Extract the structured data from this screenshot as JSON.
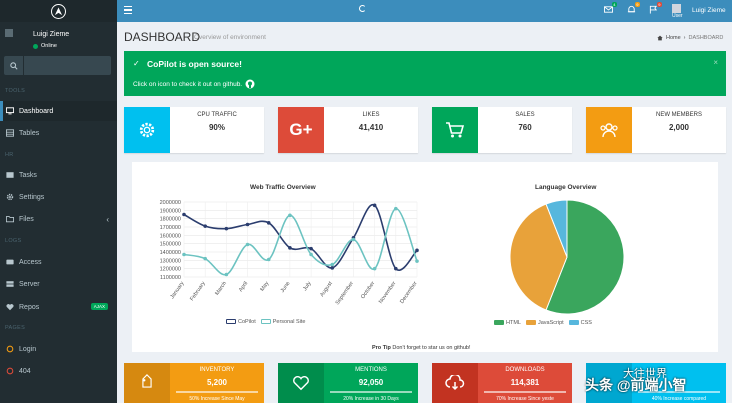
{
  "sidebar": {
    "user_name": "Luigi Zieme",
    "user_status": "Online",
    "search_placeholder": "",
    "sections": [
      "TOOLS",
      "HR",
      "LOGS",
      "PAGES"
    ],
    "items": [
      {
        "label": "Dashboard",
        "icon": "monitor-icon"
      },
      {
        "label": "Tables",
        "icon": "table-icon"
      },
      {
        "label": "Tasks",
        "icon": "tasks-icon"
      },
      {
        "label": "Settings",
        "icon": "gear-icon"
      },
      {
        "label": "Files",
        "icon": "folder-icon"
      },
      {
        "label": "Access",
        "icon": "access-icon"
      },
      {
        "label": "Server",
        "icon": "server-icon"
      },
      {
        "label": "Repos",
        "icon": "heart-icon"
      },
      {
        "label": "Login",
        "icon": "circle-icon"
      },
      {
        "label": "404",
        "icon": "circle-icon"
      }
    ],
    "repos_badge": "AJAX",
    "colors": {
      "bg": "#222d32",
      "active": "#1e282c",
      "accent": "#3c8dbc"
    }
  },
  "topbar": {
    "user_small": "User",
    "user_name": "Luigi Zieme",
    "mail_badge": "4",
    "bell_badge": "9",
    "flag_badge": "9",
    "color": "#3c8dbc"
  },
  "header": {
    "title": "DASHBOARD",
    "subtitle": "Overview of environment",
    "breadcrumb_home": "Home",
    "breadcrumb_current": "DASHBOARD"
  },
  "alert": {
    "title": "CoPilot is open source!",
    "text": "Click on icon to check it out on github.",
    "color": "#00a65a"
  },
  "info_boxes": [
    {
      "label": "CPU TRAFFIC",
      "value": "90%",
      "color": "#00c0ef",
      "icon": "gear-icon"
    },
    {
      "label": "LIKES",
      "value": "41,410",
      "color": "#dd4b39",
      "icon": "google-plus-icon"
    },
    {
      "label": "SALES",
      "value": "760",
      "color": "#00a65a",
      "icon": "cart-icon"
    },
    {
      "label": "NEW MEMBERS",
      "value": "2,000",
      "color": "#f39c12",
      "icon": "users-icon"
    }
  ],
  "pro_tip": {
    "label": "Pro Tip",
    "text": "Don't forget to star us on github!"
  },
  "chart_data": [
    {
      "type": "line",
      "title": "Web Traffic Overview",
      "categories": [
        "January",
        "February",
        "March",
        "April",
        "May",
        "June",
        "July",
        "August",
        "September",
        "October",
        "November",
        "December"
      ],
      "y_ticks": [
        1100000,
        1200000,
        1300000,
        1400000,
        1500000,
        1600000,
        1700000,
        1800000,
        1900000,
        2000000
      ],
      "ylim": [
        1100000,
        2000000
      ],
      "series": [
        {
          "name": "CoPilot",
          "color": "#2b3d6e",
          "values": [
            1850000,
            1710000,
            1680000,
            1730000,
            1750000,
            1450000,
            1440000,
            1210000,
            1570000,
            1960000,
            1200000,
            1420000
          ]
        },
        {
          "name": "Personal Site",
          "color": "#6cc3c1",
          "values": [
            1370000,
            1320000,
            1130000,
            1490000,
            1310000,
            1840000,
            1370000,
            1250000,
            1550000,
            1200000,
            1920000,
            1290000
          ]
        }
      ],
      "legend_position": "bottom"
    },
    {
      "type": "pie",
      "title": "Language Overview",
      "categories": [
        "HTML",
        "JavaScript",
        "CSS"
      ],
      "values": [
        56,
        38,
        6
      ],
      "colors": [
        "#3aa65d",
        "#e8a23a",
        "#57b7dd"
      ],
      "legend_position": "bottom"
    }
  ],
  "stat_boxes": [
    {
      "label": "INVENTORY",
      "value": "5,200",
      "desc": "50% Increase Since May",
      "color": "#f39c12",
      "dark": "#d68910",
      "icon": "tag-icon"
    },
    {
      "label": "MENTIONS",
      "value": "92,050",
      "desc": "20% Increase in 30 Days",
      "color": "#00a65a",
      "dark": "#008d4c",
      "icon": "heart-icon"
    },
    {
      "label": "DOWNLOADS",
      "value": "114,381",
      "desc": "70% Increase Since yeste",
      "color": "#dd4b39",
      "dark": "#c23321",
      "icon": "cloud-download-icon"
    },
    {
      "label": "",
      "value": "",
      "desc": "40% Increase compared",
      "color": "#00c0ef",
      "dark": "#00a7d0",
      "icon": "chat-icon"
    }
  ],
  "watermark": {
    "line1": "大往世界",
    "line2": "头条 @前端小智"
  }
}
